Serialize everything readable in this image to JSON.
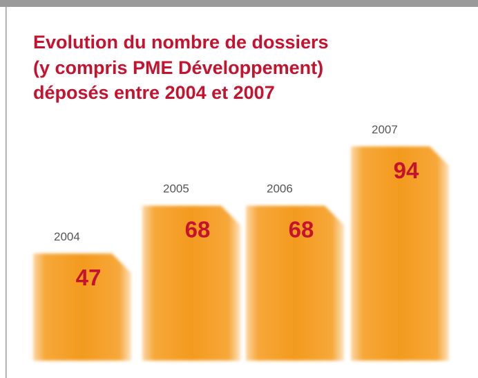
{
  "chart_data": {
    "type": "bar",
    "title": [
      "Evolution du nombre de dossiers",
      "(y compris PME Développement)",
      "déposés entre 2004 et 2007"
    ],
    "categories": [
      "2004",
      "2005",
      "2006",
      "2007"
    ],
    "values": [
      47,
      68,
      68,
      94
    ],
    "color": "#f39a1e"
  }
}
